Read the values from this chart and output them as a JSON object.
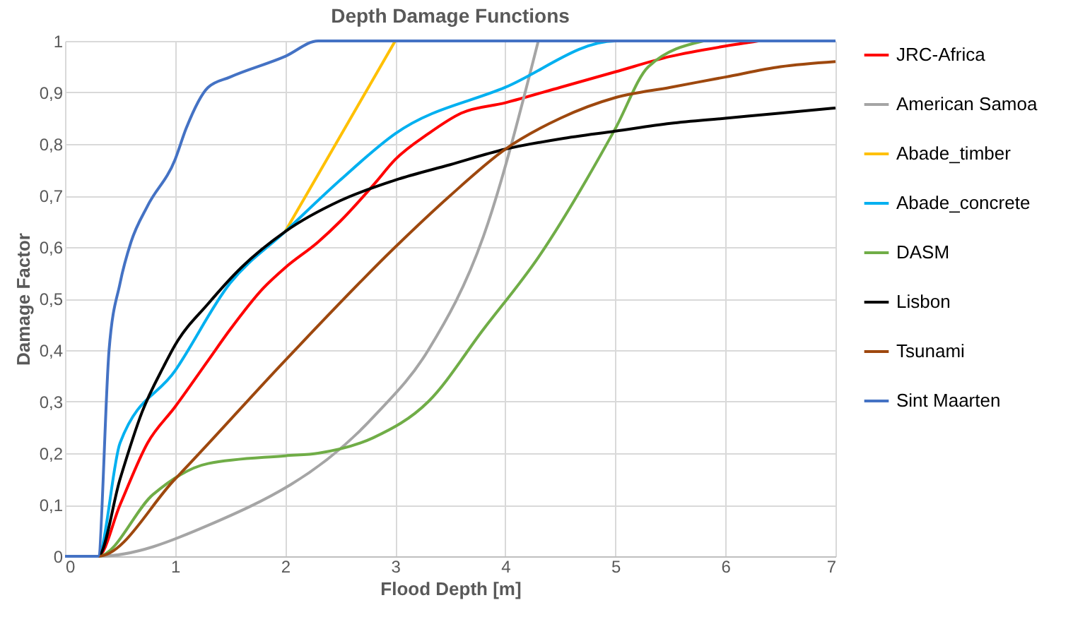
{
  "chart_data": {
    "type": "line",
    "title": "Depth Damage Functions",
    "xlabel": "Flood Depth [m]",
    "ylabel": "Damage Factor",
    "xlim": [
      0,
      7
    ],
    "xticks": [
      0,
      1,
      2,
      3,
      4,
      5,
      6,
      7
    ],
    "ylim": [
      0,
      1
    ],
    "yticks": [
      0,
      {
        "value": 0.1,
        "label": "0,1"
      },
      {
        "value": 0.2,
        "label": "0,2"
      },
      {
        "value": 0.3,
        "label": "0,3"
      },
      {
        "value": 0.4,
        "label": "0,4"
      },
      {
        "value": 0.5,
        "label": "0,5"
      },
      {
        "value": 0.6,
        "label": "0,6"
      },
      {
        "value": 0.7,
        "label": "0,7"
      },
      {
        "value": 0.8,
        "label": "0,8"
      },
      {
        "value": 0.9,
        "label": "0,9"
      },
      1
    ],
    "grid": true,
    "legend": "right",
    "marker": "none",
    "line_style": "solid",
    "series": [
      {
        "name": "JRC-Africa",
        "color": "#ff0000",
        "x": [
          0,
          0.3,
          0.5,
          0.75,
          1,
          1.3,
          1.5,
          1.8,
          2,
          2.3,
          2.5,
          2.8,
          3,
          3.3,
          3.6,
          4,
          4.5,
          5,
          5.5,
          6,
          6.3
        ],
        "values": [
          0,
          0,
          0.1,
          0.22,
          0.29,
          0.38,
          0.44,
          0.52,
          0.56,
          0.61,
          0.65,
          0.72,
          0.77,
          0.82,
          0.86,
          0.88,
          0.91,
          0.94,
          0.97,
          0.99,
          1
        ]
      },
      {
        "name": "American Samoa",
        "color": "#a5a5a5",
        "x": [
          0,
          0.3,
          1.3,
          2.8,
          3.3,
          3.8,
          4.3
        ],
        "values": [
          0,
          0,
          0.06,
          0.27,
          0.4,
          0.62,
          1
        ]
      },
      {
        "name": "Abade_timber",
        "color": "#ffc000",
        "x": [
          2,
          3
        ],
        "values": [
          0.63,
          1
        ]
      },
      {
        "name": "Abade_concrete",
        "color": "#00b0f0",
        "x": [
          0,
          0.3,
          0.5,
          1,
          1.5,
          2,
          2.5,
          3,
          4,
          5,
          7
        ],
        "values": [
          0,
          0,
          0.22,
          0.36,
          0.53,
          0.63,
          0.73,
          0.82,
          0.91,
          1,
          1
        ]
      },
      {
        "name": "DASM",
        "color": "#70ad47",
        "x": [
          0,
          0.3,
          0.8,
          1.3,
          2,
          2.3,
          2.8,
          3.3,
          3.8,
          4.3,
          5,
          5.3,
          5.8
        ],
        "values": [
          0,
          0,
          0.12,
          0.18,
          0.195,
          0.2,
          0.23,
          0.3,
          0.44,
          0.58,
          0.83,
          0.95,
          1
        ]
      },
      {
        "name": "Lisbon",
        "color": "#000000",
        "x": [
          0,
          0.3,
          0.5,
          0.7,
          0.9,
          1,
          1.3,
          1.6,
          2,
          2.5,
          3,
          3.5,
          4,
          4.5,
          5,
          5.5,
          6,
          6.5,
          7
        ],
        "values": [
          0,
          0,
          0.15,
          0.28,
          0.37,
          0.41,
          0.49,
          0.56,
          0.63,
          0.69,
          0.73,
          0.76,
          0.79,
          0.81,
          0.825,
          0.84,
          0.85,
          0.86,
          0.87
        ]
      },
      {
        "name": "Tsunami",
        "color": "#9e480e",
        "x": [
          0,
          0.3,
          1,
          2,
          3,
          3.5,
          4,
          4.5,
          5,
          5.5,
          6,
          6.5,
          7
        ],
        "values": [
          0,
          0,
          0.15,
          0.38,
          0.6,
          0.7,
          0.79,
          0.85,
          0.89,
          0.91,
          0.93,
          0.95,
          0.96
        ]
      },
      {
        "name": "Sint Maarten",
        "color": "#4472c4",
        "x": [
          0,
          0.3,
          0.4,
          0.5,
          0.6,
          0.75,
          1,
          1.1,
          1.3,
          1.5,
          2,
          2.3,
          7
        ],
        "values": [
          0,
          0,
          0.4,
          0.53,
          0.61,
          0.68,
          0.77,
          0.83,
          0.91,
          0.93,
          0.97,
          1,
          1
        ]
      }
    ]
  }
}
